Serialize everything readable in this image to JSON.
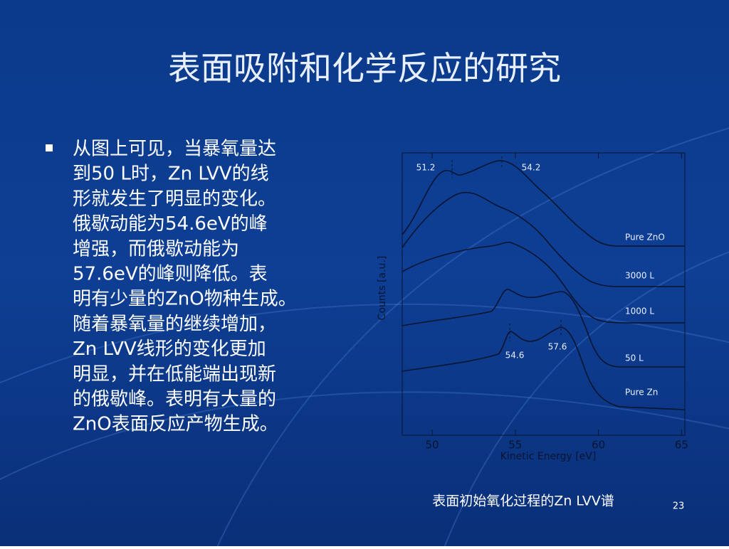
{
  "title": "表面吸附和化学反应的研究",
  "bullet": {
    "lines": [
      "从图上可见，当暴氧量达",
      "到50 L时，Zn LVV的线",
      "形就发生了明显的变化。",
      "俄歇动能为54.6eV的峰",
      "增强，而俄歇动能为",
      "57.6eV的峰则降低。表",
      "明有少量的ZnO物种生成。",
      "随着暴氧量的继续增加，",
      "Zn LVV线形的变化更加",
      "明显，并在低能端出现新",
      "的俄歇峰。表明有大量的",
      "ZnO表面反应产物生成。"
    ]
  },
  "figure": {
    "xlabel": "Kinetic Energy [eV]",
    "ylabel": "Counts [a.u.]",
    "xlim": [
      48.2,
      65.2
    ],
    "xticks": [
      50,
      55,
      60,
      65
    ],
    "curve_labels": [
      "Pure ZnO",
      "3000 L",
      "1000 L",
      "50 L",
      "Pure Zn"
    ],
    "peak_labels": [
      "51.2",
      "54.2",
      "54.6",
      "57.6"
    ],
    "caption": "表面初始氧化过程的Zn LVV谱"
  },
  "page_number": "23"
}
